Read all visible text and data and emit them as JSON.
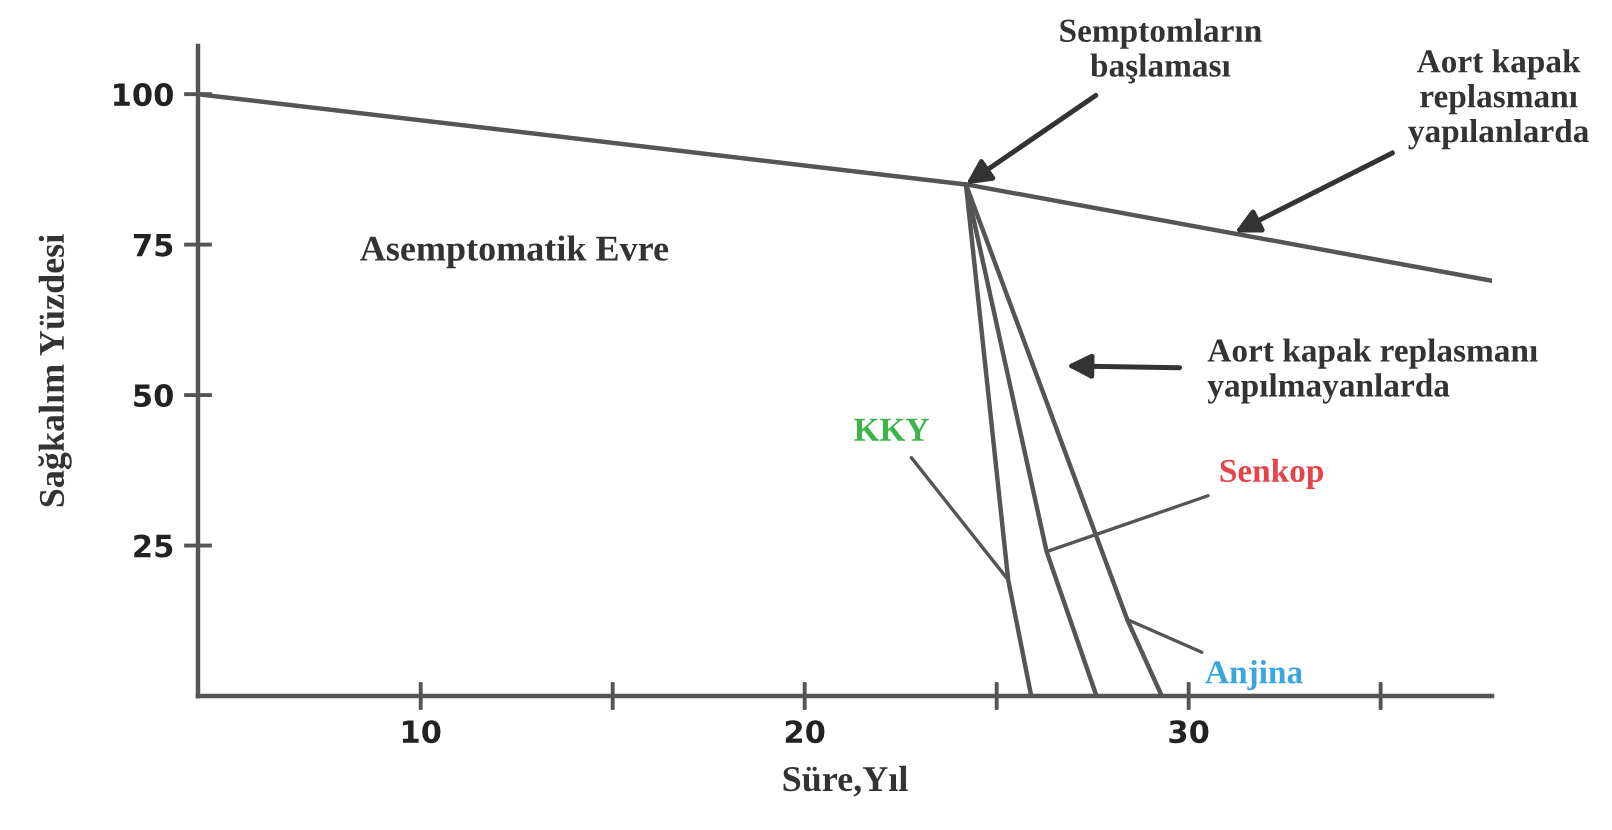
{
  "chart_data": {
    "type": "line",
    "xlabel": "Süre,Yıl",
    "ylabel": "Sağkalım Yüzdesi",
    "xlim": [
      4.2,
      37.9
    ],
    "ylim": [
      0,
      108
    ],
    "xticks": [
      10,
      {
        "value": 15,
        "label": null
      },
      20,
      {
        "value": 25,
        "label": null
      },
      30,
      {
        "value": 35,
        "label": null
      }
    ],
    "yticks": [
      25,
      50,
      75,
      100
    ],
    "grid": false,
    "legend": false,
    "marker": "none",
    "line_style": "solid",
    "series": [
      {
        "color": "#555555",
        "x": [
          4.2,
          24.2,
          37.9
        ],
        "values": [
          100,
          85,
          69
        ]
      },
      {
        "name": "KKY",
        "color": "#555555",
        "x": [
          24.2,
          25.3,
          25.9
        ],
        "values": [
          85,
          19.3,
          0
        ]
      },
      {
        "name": "Senkop",
        "color": "#555555",
        "x": [
          24.2,
          26.3,
          27.6
        ],
        "values": [
          85,
          24,
          0
        ]
      },
      {
        "name": "Anjina",
        "color": "#555555",
        "x": [
          24.2,
          28.4,
          29.3
        ],
        "values": [
          85,
          12.7,
          0
        ]
      }
    ],
    "annotations": [
      "Asemptomatik Evre",
      {
        "text": "Semptomların\nbaşlaması",
        "x": 24.2,
        "y": 85
      },
      {
        "text": "Aort kapak\nreplasmanı\nyapılanlarda",
        "x": 31.2,
        "y": 77
      },
      "Aort kapak replasmanı\nyapılmayanlarda"
    ]
  }
}
